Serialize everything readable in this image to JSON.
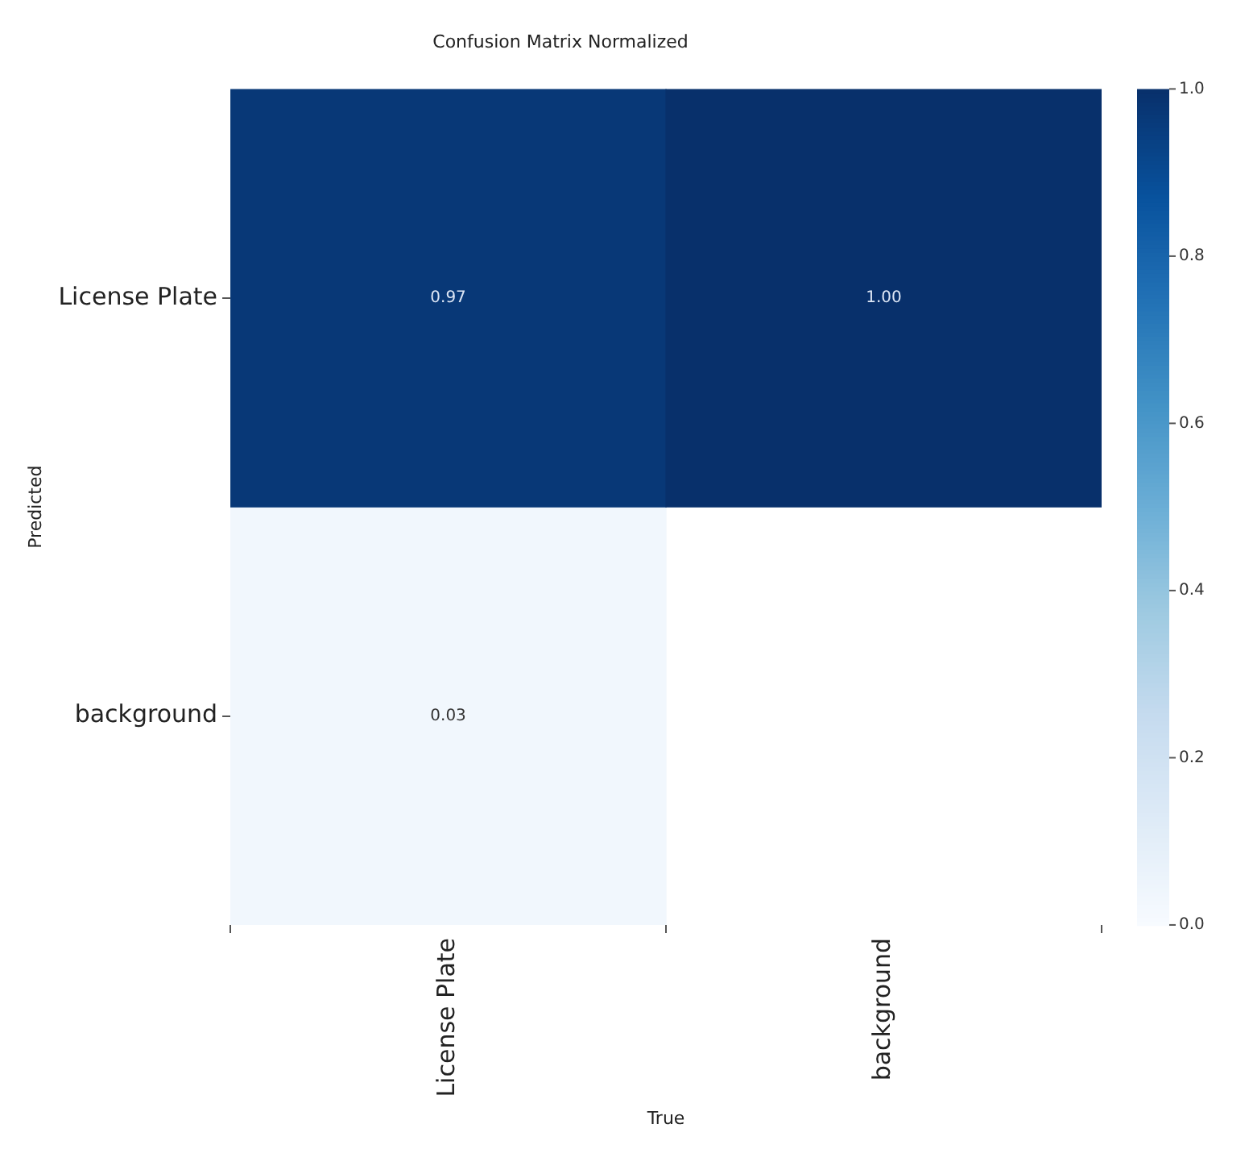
{
  "chart_data": {
    "type": "heatmap",
    "title": "Confusion Matrix Normalized",
    "xlabel": "True",
    "ylabel": "Predicted",
    "categories": [
      "License Plate",
      "background"
    ],
    "y_categories": [
      "License Plate",
      "background"
    ],
    "cells": [
      [
        0.97,
        1.0
      ],
      [
        0.03,
        null
      ]
    ],
    "cell_labels": [
      [
        "0.97",
        "1.00"
      ],
      [
        "0.03",
        null
      ]
    ],
    "clim": [
      0,
      1
    ],
    "cticks": [
      {
        "value": 0,
        "label": "0.0"
      },
      {
        "value": 0.2,
        "label": "0.2"
      },
      {
        "value": 0.4,
        "label": "0.4"
      },
      {
        "value": 0.6,
        "label": "0.6"
      },
      {
        "value": 0.8,
        "label": "0.8"
      },
      {
        "value": 1,
        "label": "1.0"
      }
    ]
  }
}
